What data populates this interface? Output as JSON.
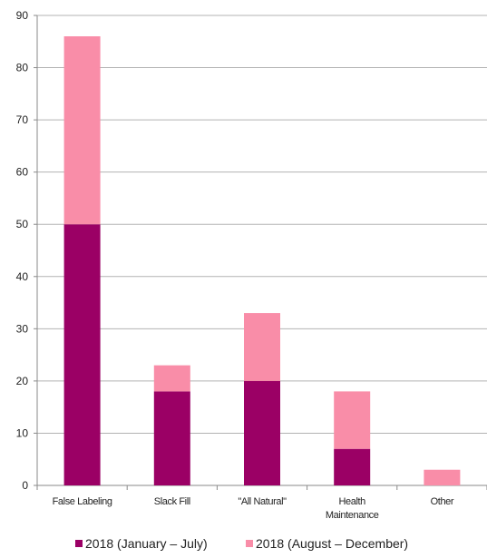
{
  "chart_data": {
    "type": "bar",
    "stacked": true,
    "categories": [
      [
        "False Labeling"
      ],
      [
        "Slack Fill"
      ],
      [
        "\"All Natural\""
      ],
      [
        "Health",
        "Maintenance"
      ],
      [
        "Other"
      ]
    ],
    "series": [
      {
        "name": "2018 (January – July)",
        "color": "#9b0065",
        "values": [
          50,
          18,
          20,
          7,
          0
        ]
      },
      {
        "name": "2018 (August – December)",
        "color": "#f98da8",
        "values": [
          36,
          5,
          13,
          11,
          3
        ]
      }
    ],
    "ylim": [
      0,
      90
    ],
    "yticks": [
      0,
      10,
      20,
      30,
      40,
      50,
      60,
      70,
      80,
      90
    ],
    "grid": true,
    "legend_position": "bottom"
  }
}
